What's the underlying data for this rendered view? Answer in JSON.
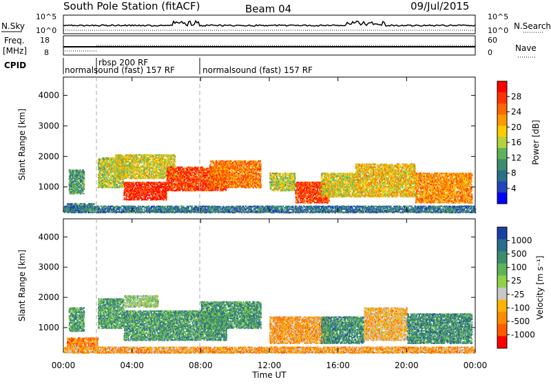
{
  "header": {
    "station": "South Pole Station (fitACF)",
    "beam": "Beam 04",
    "date": "09/Jul/2015"
  },
  "strip": {
    "nsky_label": "N.Sky",
    "nsky_ticks": [
      "10^5",
      "10^0"
    ],
    "nsearch_label": "N.Search",
    "nsearch_ticks": [
      "10^5",
      "10^0"
    ],
    "freq_label": "Freq.",
    "freq_unit": "[MHz]",
    "freq_ticks": [
      "18",
      "8"
    ],
    "nave_label": "Nave",
    "nave_ticks": [
      "60",
      "0"
    ],
    "cpid_label": "CPID",
    "cpid_segments": [
      {
        "start": 0.0,
        "text": "normalsound (fast) 157 RF"
      },
      {
        "start": 2.0,
        "text": "rbsp 200 RF"
      },
      {
        "start": 8.0,
        "text": "normalsound (fast) 157 RF"
      }
    ]
  },
  "chart_data": [
    {
      "type": "heatmap",
      "panel": "power",
      "x_label": "Time UT",
      "y_label": "Slant Range [km]",
      "xlim": [
        0,
        24
      ],
      "ylim": [
        180,
        4600
      ],
      "x_ticks": [
        "00:00",
        "04:00",
        "08:00",
        "12:00",
        "16:00",
        "20:00",
        "00:00"
      ],
      "y_ticks": [
        1000,
        2000,
        3000,
        4000
      ],
      "colorbar": {
        "label": "Power [dB]",
        "ticks": [
          "28",
          "24",
          "20",
          "16",
          "12",
          "8",
          "4"
        ],
        "colors": [
          "#ff0000",
          "#ff3300",
          "#ff6600",
          "#ff9900",
          "#ffcc00",
          "#b4d23c",
          "#5fb45a",
          "#3c8c6e",
          "#2a6e8a",
          "#2244bb",
          "#0000ff"
        ]
      },
      "scatter_regions": [
        {
          "x": [
            0.3,
            1.2
          ],
          "y": [
            800,
            1600
          ],
          "level": 0.35
        },
        {
          "x": [
            0.2,
            1.8
          ],
          "y": [
            250,
            500
          ],
          "level": 0.3
        },
        {
          "x": [
            2.0,
            3.5
          ],
          "y": [
            1000,
            2000
          ],
          "level": 0.5
        },
        {
          "x": [
            3.5,
            6.0
          ],
          "y": [
            600,
            1200
          ],
          "level": 0.9
        },
        {
          "x": [
            3.0,
            6.5
          ],
          "y": [
            1300,
            2100
          ],
          "level": 0.55
        },
        {
          "x": [
            6.0,
            9.5
          ],
          "y": [
            900,
            1700
          ],
          "level": 0.85
        },
        {
          "x": [
            8.5,
            11.5
          ],
          "y": [
            1000,
            1900
          ],
          "level": 0.75
        },
        {
          "x": [
            12.0,
            13.5
          ],
          "y": [
            900,
            1500
          ],
          "level": 0.5
        },
        {
          "x": [
            13.5,
            15.5
          ],
          "y": [
            500,
            1200
          ],
          "level": 0.85
        },
        {
          "x": [
            15.0,
            17.0
          ],
          "y": [
            700,
            1500
          ],
          "level": 0.55
        },
        {
          "x": [
            17.0,
            20.5
          ],
          "y": [
            700,
            1800
          ],
          "level": 0.6
        },
        {
          "x": [
            20.5,
            23.8
          ],
          "y": [
            500,
            1500
          ],
          "level": 0.7
        },
        {
          "x": [
            0.0,
            24.0
          ],
          "y": [
            180,
            420
          ],
          "level": 0.25
        }
      ]
    },
    {
      "type": "heatmap",
      "panel": "velocity",
      "x_label": "Time UT",
      "y_label": "Slant Range [km]",
      "xlim": [
        0,
        24
      ],
      "ylim": [
        180,
        4600
      ],
      "x_ticks": [
        "00:00",
        "04:00",
        "08:00",
        "12:00",
        "16:00",
        "20:00",
        "00:00"
      ],
      "y_ticks": [
        1000,
        2000,
        3000,
        4000
      ],
      "colorbar": {
        "label": "Velocity [m s⁻¹]",
        "ticks": [
          "1000",
          "500",
          "100",
          "25",
          "-25",
          "-100",
          "-500",
          "-1000"
        ],
        "colors": [
          "#1a3fa8",
          "#2a6e8a",
          "#3c8c6e",
          "#5fb45a",
          "#8fd24a",
          "#c8c8c8",
          "#ffb400",
          "#ff8c00",
          "#ff5a00",
          "#ff0000"
        ]
      },
      "scatter_regions": [
        {
          "x": [
            0.3,
            1.2
          ],
          "y": [
            900,
            1700
          ],
          "level": 0.7
        },
        {
          "x": [
            0.2,
            2.0
          ],
          "y": [
            300,
            700
          ],
          "level": 0.25
        },
        {
          "x": [
            2.0,
            3.5
          ],
          "y": [
            1000,
            2000
          ],
          "level": 0.7
        },
        {
          "x": [
            3.5,
            5.5
          ],
          "y": [
            1700,
            2100
          ],
          "level": 0.55
        },
        {
          "x": [
            3.5,
            9.5
          ],
          "y": [
            600,
            1600
          ],
          "level": 0.72
        },
        {
          "x": [
            8.0,
            11.5
          ],
          "y": [
            1000,
            1900
          ],
          "level": 0.72
        },
        {
          "x": [
            12.0,
            15.5
          ],
          "y": [
            500,
            1400
          ],
          "level": 0.3
        },
        {
          "x": [
            15.0,
            17.5
          ],
          "y": [
            500,
            1400
          ],
          "level": 0.75
        },
        {
          "x": [
            17.5,
            20.0
          ],
          "y": [
            600,
            1700
          ],
          "level": 0.35
        },
        {
          "x": [
            20.0,
            23.8
          ],
          "y": [
            500,
            1500
          ],
          "level": 0.75
        },
        {
          "x": [
            0.0,
            24.0
          ],
          "y": [
            180,
            400
          ],
          "level": 0.3
        }
      ]
    }
  ]
}
